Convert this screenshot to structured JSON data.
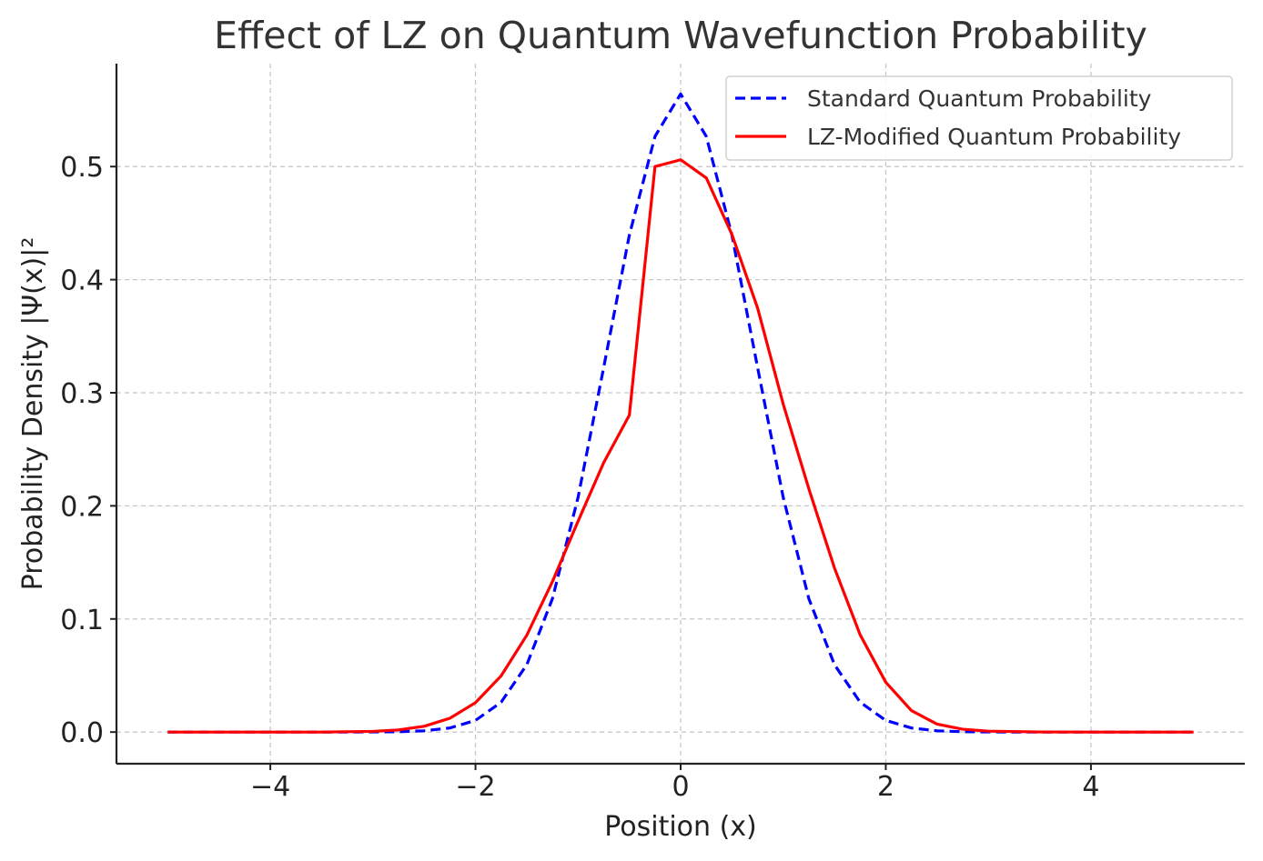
{
  "chart_data": {
    "type": "line",
    "title": "Effect of LZ on Quantum Wavefunction Probability",
    "xlabel": "Position (x)",
    "ylabel": "Probability Density |Ψ(x)|²",
    "xlim": [
      -5.5,
      5.5
    ],
    "ylim": [
      -0.028,
      0.591
    ],
    "x_ticks": [
      -4,
      -2,
      0,
      2,
      4
    ],
    "x_tick_labels": [
      "−4",
      "−2",
      "0",
      "2",
      "4"
    ],
    "y_ticks": [
      0.0,
      0.1,
      0.2,
      0.3,
      0.4,
      0.5
    ],
    "y_tick_labels": [
      "0.0",
      "0.1",
      "0.2",
      "0.3",
      "0.4",
      "0.5"
    ],
    "grid": true,
    "legend_position": "top-right",
    "x": [
      -5.0,
      -4.5,
      -4.0,
      -3.5,
      -3.0,
      -2.75,
      -2.5,
      -2.25,
      -2.0,
      -1.75,
      -1.5,
      -1.25,
      -1.0,
      -0.75,
      -0.5,
      -0.25,
      0.0,
      0.25,
      0.5,
      0.75,
      1.0,
      1.25,
      1.5,
      1.75,
      2.0,
      2.25,
      2.5,
      2.75,
      3.0,
      3.5,
      4.0,
      4.5,
      5.0
    ],
    "series": [
      {
        "name": "Standard Quantum Probability",
        "color": "#0000ff",
        "line_style": "dashed",
        "values": [
          0.0,
          0.0,
          0.0,
          0.0,
          0.0001,
          0.0003,
          0.0011,
          0.0036,
          0.0103,
          0.0264,
          0.0595,
          0.1179,
          0.2075,
          0.3224,
          0.4394,
          0.5267,
          0.5642,
          0.5267,
          0.4394,
          0.3224,
          0.2075,
          0.1179,
          0.0595,
          0.0264,
          0.0103,
          0.0036,
          0.0011,
          0.0003,
          0.0001,
          0.0,
          0.0,
          0.0,
          0.0
        ]
      },
      {
        "name": "LZ-Modified Quantum Probability",
        "color": "#ff0000",
        "line_style": "solid",
        "values": [
          0.0,
          0.0,
          0.0,
          0.0,
          0.0006,
          0.0019,
          0.0051,
          0.0122,
          0.026,
          0.0497,
          0.0856,
          0.133,
          0.1864,
          0.2382,
          0.2802,
          0.5,
          0.506,
          0.49,
          0.44,
          0.375,
          0.29,
          0.215,
          0.145,
          0.086,
          0.044,
          0.019,
          0.007,
          0.0025,
          0.0008,
          0.0001,
          0.0,
          0.0,
          0.0
        ]
      }
    ]
  }
}
